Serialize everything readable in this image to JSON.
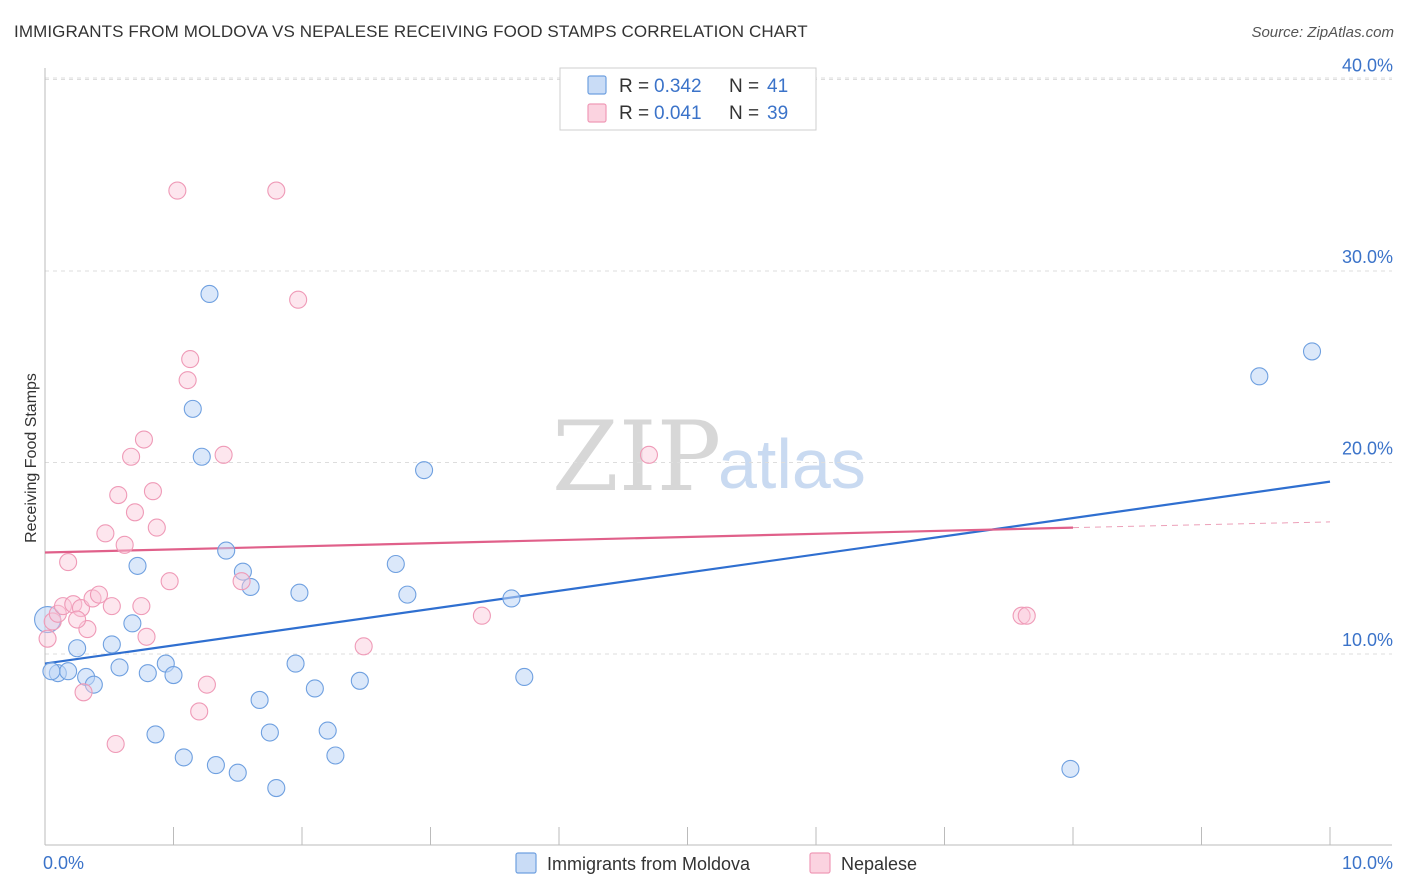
{
  "header": {
    "title": "IMMIGRANTS FROM MOLDOVA VS NEPALESE RECEIVING FOOD STAMPS CORRELATION CHART",
    "source": "Source: ZipAtlas.com"
  },
  "watermark": {
    "zip": "ZIP",
    "atlas": "atlas"
  },
  "legend_top": {
    "r_label": "R =",
    "n_label": "N =",
    "rows": [
      {
        "r": "0.342",
        "n": "41"
      },
      {
        "r": "0.041",
        "n": "39"
      }
    ]
  },
  "chart_data": {
    "type": "scatter",
    "title": "IMMIGRANTS FROM MOLDOVA VS NEPALESE RECEIVING FOOD STAMPS CORRELATION CHART",
    "xlabel": "",
    "ylabel": "Receiving Food Stamps",
    "xlim": [
      0,
      10
    ],
    "ylim": [
      1,
      42
    ],
    "x_tick_labels": [
      "0.0%",
      "10.0%"
    ],
    "y_ticks": [
      10,
      20,
      30,
      40
    ],
    "y_tick_labels": [
      "10.0%",
      "20.0%",
      "30.0%",
      "40.0%"
    ],
    "grid": true,
    "legend_position": "bottom",
    "colors": {
      "moldova": "#6fa0e0",
      "nepalese": "#ef9ab7",
      "moldova_line": "#2f6fd0",
      "nepalese_line": "#e0608a"
    },
    "series": [
      {
        "name": "Immigrants from Moldova",
        "r": 0.342,
        "n": 41,
        "trend": {
          "x": [
            0,
            10
          ],
          "y": [
            9.5,
            19.0
          ]
        },
        "points": [
          [
            0.02,
            11.8
          ],
          [
            0.1,
            9.0
          ],
          [
            0.18,
            9.1
          ],
          [
            0.25,
            10.3
          ],
          [
            0.32,
            8.8
          ],
          [
            0.38,
            8.4
          ],
          [
            0.52,
            10.5
          ],
          [
            0.58,
            9.3
          ],
          [
            0.68,
            11.6
          ],
          [
            0.72,
            14.6
          ],
          [
            0.8,
            9.0
          ],
          [
            0.86,
            5.8
          ],
          [
            0.94,
            9.5
          ],
          [
            1.0,
            8.9
          ],
          [
            1.08,
            4.6
          ],
          [
            1.15,
            22.8
          ],
          [
            1.22,
            20.3
          ],
          [
            1.28,
            28.8
          ],
          [
            1.33,
            4.2
          ],
          [
            1.41,
            15.4
          ],
          [
            1.5,
            3.8
          ],
          [
            1.54,
            14.3
          ],
          [
            1.6,
            13.5
          ],
          [
            1.67,
            7.6
          ],
          [
            1.75,
            5.9
          ],
          [
            1.8,
            3.0
          ],
          [
            1.95,
            9.5
          ],
          [
            1.98,
            13.2
          ],
          [
            2.1,
            8.2
          ],
          [
            2.2,
            6.0
          ],
          [
            2.26,
            4.7
          ],
          [
            2.45,
            8.6
          ],
          [
            2.73,
            14.7
          ],
          [
            2.82,
            13.1
          ],
          [
            2.95,
            19.6
          ],
          [
            3.63,
            12.9
          ],
          [
            3.73,
            8.8
          ],
          [
            7.98,
            4.0
          ],
          [
            9.45,
            24.5
          ],
          [
            9.86,
            25.8
          ],
          [
            0.05,
            9.1
          ]
        ]
      },
      {
        "name": "Nepalese",
        "r": 0.041,
        "n": 39,
        "trend": {
          "x": [
            0,
            8.0
          ],
          "y": [
            15.3,
            16.6
          ]
        },
        "trend_dashed": {
          "x": [
            8.0,
            10
          ],
          "y": [
            16.6,
            16.9
          ]
        },
        "points": [
          [
            0.02,
            10.8
          ],
          [
            0.06,
            11.7
          ],
          [
            0.1,
            12.1
          ],
          [
            0.14,
            12.5
          ],
          [
            0.18,
            14.8
          ],
          [
            0.22,
            12.6
          ],
          [
            0.28,
            12.4
          ],
          [
            0.3,
            8.0
          ],
          [
            0.33,
            11.3
          ],
          [
            0.37,
            12.9
          ],
          [
            0.42,
            13.1
          ],
          [
            0.47,
            16.3
          ],
          [
            0.52,
            12.5
          ],
          [
            0.55,
            5.3
          ],
          [
            0.57,
            18.3
          ],
          [
            0.62,
            15.7
          ],
          [
            0.67,
            20.3
          ],
          [
            0.7,
            17.4
          ],
          [
            0.75,
            12.5
          ],
          [
            0.77,
            21.2
          ],
          [
            0.79,
            10.9
          ],
          [
            0.84,
            18.5
          ],
          [
            0.87,
            16.6
          ],
          [
            0.97,
            13.8
          ],
          [
            1.03,
            34.2
          ],
          [
            1.11,
            24.3
          ],
          [
            1.13,
            25.4
          ],
          [
            1.2,
            7.0
          ],
          [
            1.26,
            8.4
          ],
          [
            1.39,
            20.4
          ],
          [
            1.53,
            13.8
          ],
          [
            1.8,
            34.2
          ],
          [
            1.97,
            28.5
          ],
          [
            2.48,
            10.4
          ],
          [
            3.4,
            12.0
          ],
          [
            4.7,
            20.4
          ],
          [
            7.6,
            12.0
          ],
          [
            7.64,
            12.0
          ],
          [
            0.25,
            11.8
          ]
        ]
      }
    ]
  },
  "legend_bottom": {
    "items": [
      {
        "label": "Immigrants from Moldova"
      },
      {
        "label": "Nepalese"
      }
    ]
  }
}
